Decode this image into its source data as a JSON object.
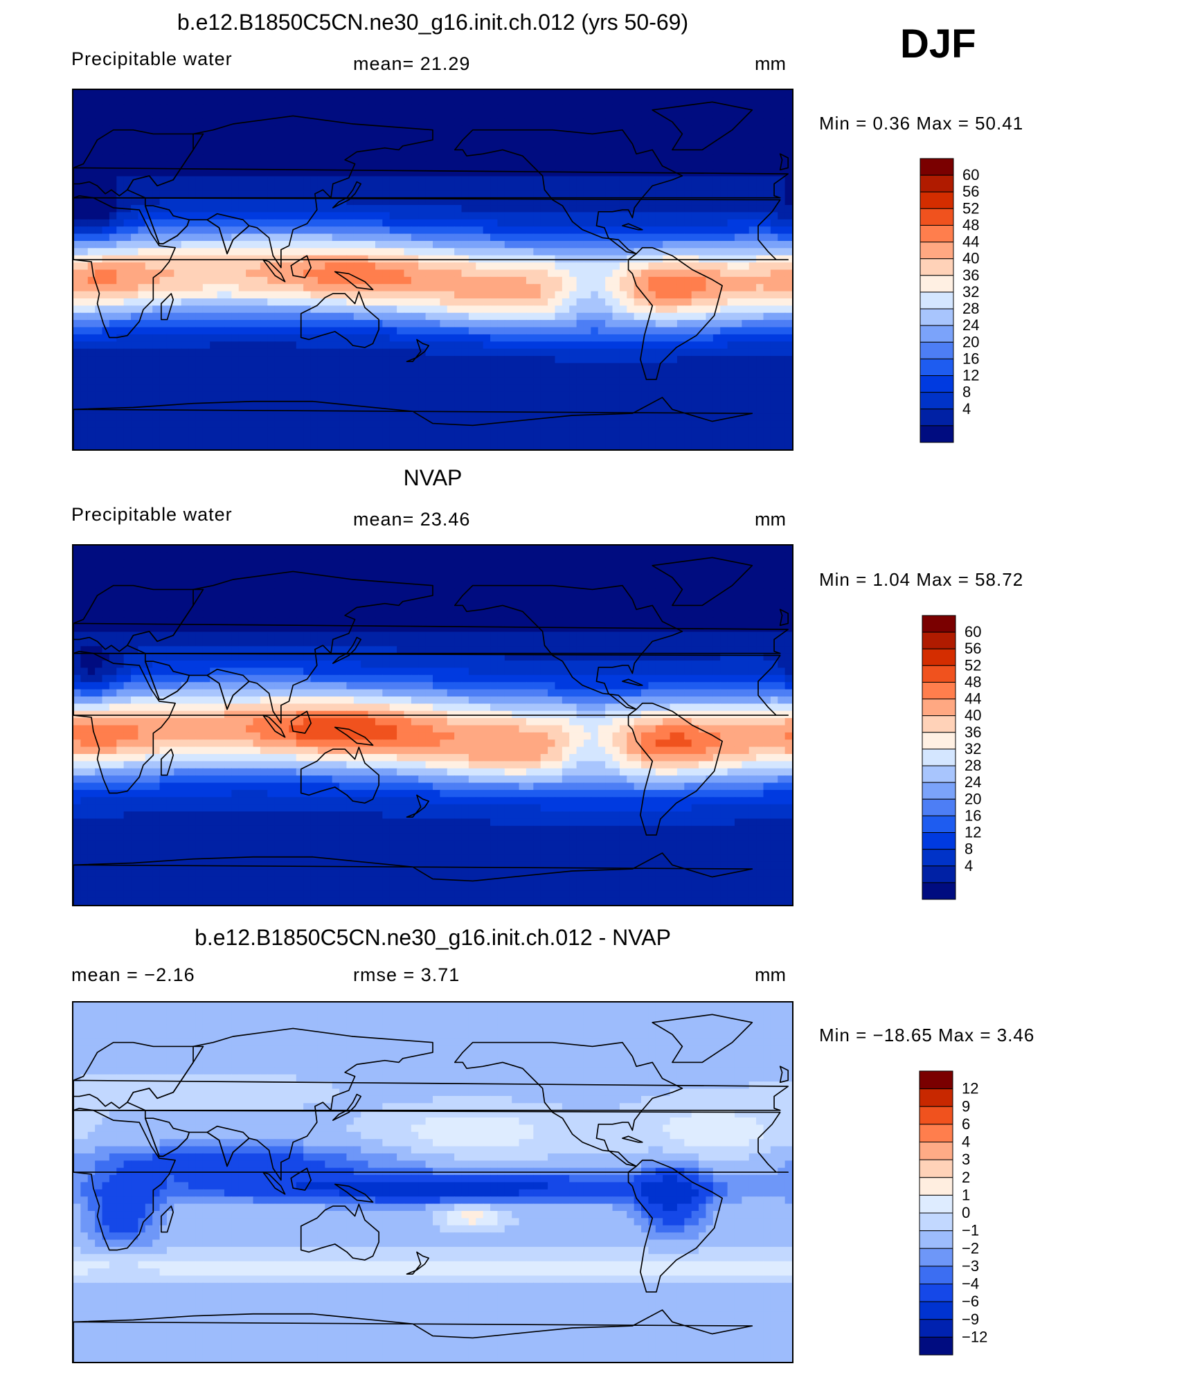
{
  "season": "DJF",
  "colors": {
    "seq": [
      "#000c80",
      "#0021a5",
      "#0033c8",
      "#003ae0",
      "#1e5cf0",
      "#4d7ef5",
      "#7ba3fa",
      "#a8c5fd",
      "#d4e6ff",
      "#fff0e3",
      "#ffd2b8",
      "#ffa882",
      "#ff7e4d",
      "#f0521e",
      "#d42d00",
      "#b01b00",
      "#7a0000"
    ],
    "diff": [
      "#000c80",
      "#0022b0",
      "#0033d0",
      "#1548e8",
      "#3c6ef2",
      "#6e97f8",
      "#9dbcfc",
      "#c2d8ff",
      "#deecff",
      "#ffeee0",
      "#ffd2b8",
      "#ffab86",
      "#ff7e4d",
      "#f0521e",
      "#c82800",
      "#7a0000"
    ]
  },
  "chart_data": [
    {
      "type": "heatmap",
      "title": "b.e12.B1850C5CN.ne30_g16.init.ch.012 (yrs 50-69)",
      "left_label": "Precipitable  water",
      "center_label": "mean=   21.29",
      "units": "mm",
      "min_max": "Min  =     0.36  Max  =    50.41",
      "colorbar_labels": [
        "60",
        "56",
        "52",
        "48",
        "44",
        "40",
        "36",
        "32",
        "28",
        "24",
        "20",
        "16",
        "12",
        "8",
        "4"
      ],
      "colorbar_palette": "seq",
      "range": [
        0.36,
        50.41
      ]
    },
    {
      "type": "heatmap",
      "title": "NVAP",
      "left_label": "Precipitable  water",
      "center_label": "mean=   23.46",
      "units": "mm",
      "min_max": "Min  =     1.04  Max  =    58.72",
      "colorbar_labels": [
        "60",
        "56",
        "52",
        "48",
        "44",
        "40",
        "36",
        "32",
        "28",
        "24",
        "20",
        "16",
        "12",
        "8",
        "4"
      ],
      "colorbar_palette": "seq",
      "range": [
        1.04,
        58.72
      ]
    },
    {
      "type": "heatmap",
      "title": "b.e12.B1850C5CN.ne30_g16.init.ch.012 - NVAP",
      "left_label": "mean  =    −2.16",
      "center_label": "rmse  =     3.71",
      "units": "mm",
      "min_max": "Min  =  −18.65  Max  =     3.46",
      "colorbar_labels": [
        "12",
        "9",
        "6",
        "4",
        "3",
        "2",
        "1",
        "0",
        "−1",
        "−2",
        "−3",
        "−4",
        "−6",
        "−9",
        "−12"
      ],
      "colorbar_palette": "diff",
      "range": [
        -18.65,
        3.46
      ]
    }
  ]
}
